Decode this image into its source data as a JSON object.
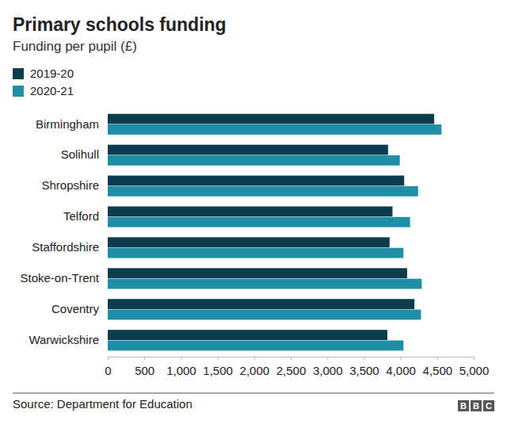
{
  "chart_data": {
    "type": "bar",
    "orientation": "horizontal",
    "title": "Primary schools funding",
    "subtitle": "Funding per pupil (£)",
    "source": "Source: Department for Education",
    "credit": "BBC",
    "categories": [
      "Birmingham",
      "Solihull",
      "Shropshire",
      "Telford",
      "Staffordshire",
      "Stoke-on-Trent",
      "Coventry",
      "Warwickshire"
    ],
    "series": [
      {
        "name": "2019-20",
        "color": "#0c3d4e",
        "values": [
          4460,
          3830,
          4050,
          3890,
          3850,
          4090,
          4190,
          3820
        ]
      },
      {
        "name": "2020-21",
        "color": "#1f8fa8",
        "values": [
          4560,
          3990,
          4240,
          4130,
          4040,
          4290,
          4280,
          4040
        ]
      }
    ],
    "xlim": [
      0,
      5000
    ],
    "xticks": [
      0,
      500,
      {
        "value": 1000,
        "label": "1,000"
      },
      {
        "value": 1500,
        "label": "1,500"
      },
      {
        "value": 2000,
        "label": "2,000"
      },
      {
        "value": 2500,
        "label": "2,500"
      },
      {
        "value": 3000,
        "label": "3,000"
      },
      {
        "value": 3500,
        "label": "3,500"
      },
      {
        "value": 4000,
        "label": "4,000"
      },
      {
        "value": 4500,
        "label": "4,500"
      },
      {
        "value": 5000,
        "label": "5,000"
      }
    ],
    "grid": false,
    "legend": "top-left"
  }
}
